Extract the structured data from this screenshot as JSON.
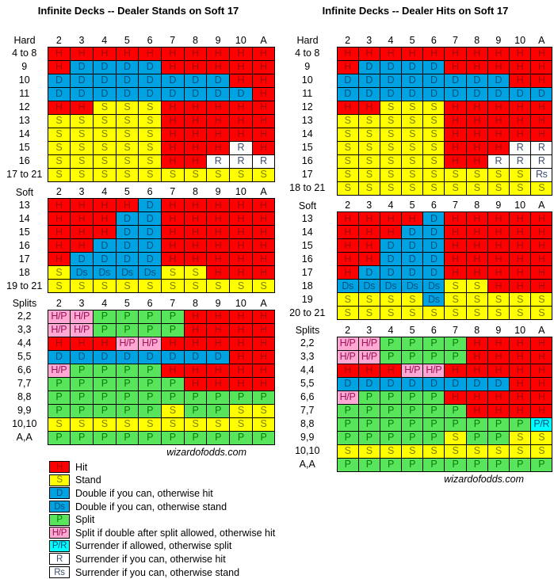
{
  "palette": {
    "H": {
      "bg": "#FF0000",
      "fg": "#9B0D0D"
    },
    "S": {
      "bg": "#FFFF00",
      "fg": "#7F7F00"
    },
    "D": {
      "bg": "#00A3E2",
      "fg": "#07507E"
    },
    "Ds": {
      "bg": "#00A3E2",
      "fg": "#07507E"
    },
    "P": {
      "bg": "#58E55C",
      "fg": "#0B7A0B"
    },
    "H/P": {
      "bg": "#FFA8D3",
      "fg": "#9C1458"
    },
    "P/R": {
      "bg": "#00FFFF",
      "fg": "#07507E"
    },
    "R": {
      "bg": "#FFFFFF",
      "fg": "#3C4E6E"
    },
    "Rs": {
      "bg": "#FFFFFF",
      "fg": "#3C4E6E"
    }
  },
  "chart_data": [
    {
      "type": "table",
      "title": "Infinite Decks -- Dealer Stands on Soft 17",
      "footer": "wizardofodds.com",
      "columns": [
        "2",
        "3",
        "4",
        "5",
        "6",
        "7",
        "8",
        "9",
        "10",
        "A"
      ],
      "sections": [
        {
          "label": "Hard",
          "rows": [
            {
              "label": "4 to 8",
              "cells": [
                "H",
                "H",
                "H",
                "H",
                "H",
                "H",
                "H",
                "H",
                "H",
                "H"
              ]
            },
            {
              "label": "9",
              "cells": [
                "H",
                "D",
                "D",
                "D",
                "D",
                "H",
                "H",
                "H",
                "H",
                "H"
              ]
            },
            {
              "label": "10",
              "cells": [
                "D",
                "D",
                "D",
                "D",
                "D",
                "D",
                "D",
                "D",
                "H",
                "H"
              ]
            },
            {
              "label": "11",
              "cells": [
                "D",
                "D",
                "D",
                "D",
                "D",
                "D",
                "D",
                "D",
                "D",
                "H"
              ]
            },
            {
              "label": "12",
              "cells": [
                "H",
                "H",
                "S",
                "S",
                "S",
                "H",
                "H",
                "H",
                "H",
                "H"
              ]
            },
            {
              "label": "13",
              "cells": [
                "S",
                "S",
                "S",
                "S",
                "S",
                "H",
                "H",
                "H",
                "H",
                "H"
              ]
            },
            {
              "label": "14",
              "cells": [
                "S",
                "S",
                "S",
                "S",
                "S",
                "H",
                "H",
                "H",
                "H",
                "H"
              ]
            },
            {
              "label": "15",
              "cells": [
                "S",
                "S",
                "S",
                "S",
                "S",
                "H",
                "H",
                "H",
                "R",
                "H"
              ]
            },
            {
              "label": "16",
              "cells": [
                "S",
                "S",
                "S",
                "S",
                "S",
                "H",
                "H",
                "R",
                "R",
                "R"
              ]
            },
            {
              "label": "17 to 21",
              "cells": [
                "S",
                "S",
                "S",
                "S",
                "S",
                "S",
                "S",
                "S",
                "S",
                "S"
              ]
            }
          ]
        },
        {
          "label": "Soft",
          "rows": [
            {
              "label": "13",
              "cells": [
                "H",
                "H",
                "H",
                "H",
                "D",
                "H",
                "H",
                "H",
                "H",
                "H"
              ]
            },
            {
              "label": "14",
              "cells": [
                "H",
                "H",
                "H",
                "D",
                "D",
                "H",
                "H",
                "H",
                "H",
                "H"
              ]
            },
            {
              "label": "15",
              "cells": [
                "H",
                "H",
                "H",
                "D",
                "D",
                "H",
                "H",
                "H",
                "H",
                "H"
              ]
            },
            {
              "label": "16",
              "cells": [
                "H",
                "H",
                "D",
                "D",
                "D",
                "H",
                "H",
                "H",
                "H",
                "H"
              ]
            },
            {
              "label": "17",
              "cells": [
                "H",
                "D",
                "D",
                "D",
                "D",
                "H",
                "H",
                "H",
                "H",
                "H"
              ]
            },
            {
              "label": "18",
              "cells": [
                "S",
                "Ds",
                "Ds",
                "Ds",
                "Ds",
                "S",
                "S",
                "H",
                "H",
                "H"
              ]
            },
            {
              "label": "19 to 21",
              "cells": [
                "S",
                "S",
                "S",
                "S",
                "S",
                "S",
                "S",
                "S",
                "S",
                "S"
              ]
            }
          ]
        },
        {
          "label": "Splits",
          "rows": [
            {
              "label": "2,2",
              "cells": [
                "H/P",
                "H/P",
                "P",
                "P",
                "P",
                "P",
                "H",
                "H",
                "H",
                "H"
              ]
            },
            {
              "label": "3,3",
              "cells": [
                "H/P",
                "H/P",
                "P",
                "P",
                "P",
                "P",
                "H",
                "H",
                "H",
                "H"
              ]
            },
            {
              "label": "4,4",
              "cells": [
                "H",
                "H",
                "H",
                "H/P",
                "H/P",
                "H",
                "H",
                "H",
                "H",
                "H"
              ]
            },
            {
              "label": "5,5",
              "cells": [
                "D",
                "D",
                "D",
                "D",
                "D",
                "D",
                "D",
                "D",
                "H",
                "H"
              ]
            },
            {
              "label": "6,6",
              "cells": [
                "H/P",
                "P",
                "P",
                "P",
                "P",
                "H",
                "H",
                "H",
                "H",
                "H"
              ]
            },
            {
              "label": "7,7",
              "cells": [
                "P",
                "P",
                "P",
                "P",
                "P",
                "P",
                "H",
                "H",
                "H",
                "H"
              ]
            },
            {
              "label": "8,8",
              "cells": [
                "P",
                "P",
                "P",
                "P",
                "P",
                "P",
                "P",
                "P",
                "P",
                "P"
              ]
            },
            {
              "label": "9,9",
              "cells": [
                "P",
                "P",
                "P",
                "P",
                "P",
                "S",
                "P",
                "P",
                "S",
                "S"
              ]
            },
            {
              "label": "10,10",
              "cells": [
                "S",
                "S",
                "S",
                "S",
                "S",
                "S",
                "S",
                "S",
                "S",
                "S"
              ]
            },
            {
              "label": "A,A",
              "cells": [
                "P",
                "P",
                "P",
                "P",
                "P",
                "P",
                "P",
                "P",
                "P",
                "P"
              ]
            }
          ]
        }
      ]
    },
    {
      "type": "table",
      "title": "Infinite Decks -- Dealer Hits on Soft 17",
      "footer": "wizardofodds.com",
      "columns": [
        "2",
        "3",
        "4",
        "5",
        "6",
        "7",
        "8",
        "9",
        "10",
        "A"
      ],
      "sections": [
        {
          "label": "Hard",
          "rows": [
            {
              "label": "4 to 8",
              "cells": [
                "H",
                "H",
                "H",
                "H",
                "H",
                "H",
                "H",
                "H",
                "H",
                "H"
              ]
            },
            {
              "label": "9",
              "cells": [
                "H",
                "D",
                "D",
                "D",
                "D",
                "H",
                "H",
                "H",
                "H",
                "H"
              ]
            },
            {
              "label": "10",
              "cells": [
                "D",
                "D",
                "D",
                "D",
                "D",
                "D",
                "D",
                "D",
                "H",
                "H"
              ]
            },
            {
              "label": "11",
              "cells": [
                "D",
                "D",
                "D",
                "D",
                "D",
                "D",
                "D",
                "D",
                "D",
                "D"
              ]
            },
            {
              "label": "12",
              "cells": [
                "H",
                "H",
                "S",
                "S",
                "S",
                "H",
                "H",
                "H",
                "H",
                "H"
              ]
            },
            {
              "label": "13",
              "cells": [
                "S",
                "S",
                "S",
                "S",
                "S",
                "H",
                "H",
                "H",
                "H",
                "H"
              ]
            },
            {
              "label": "14",
              "cells": [
                "S",
                "S",
                "S",
                "S",
                "S",
                "H",
                "H",
                "H",
                "H",
                "H"
              ]
            },
            {
              "label": "15",
              "cells": [
                "S",
                "S",
                "S",
                "S",
                "S",
                "H",
                "H",
                "H",
                "R",
                "R"
              ]
            },
            {
              "label": "16",
              "cells": [
                "S",
                "S",
                "S",
                "S",
                "S",
                "H",
                "H",
                "R",
                "R",
                "R"
              ]
            },
            {
              "label": "17",
              "cells": [
                "S",
                "S",
                "S",
                "S",
                "S",
                "S",
                "S",
                "S",
                "S",
                "Rs"
              ]
            },
            {
              "label": "18 to 21",
              "cells": [
                "S",
                "S",
                "S",
                "S",
                "S",
                "S",
                "S",
                "S",
                "S",
                "S"
              ]
            }
          ]
        },
        {
          "label": "Soft",
          "rows": [
            {
              "label": "13",
              "cells": [
                "H",
                "H",
                "H",
                "H",
                "D",
                "H",
                "H",
                "H",
                "H",
                "H"
              ]
            },
            {
              "label": "14",
              "cells": [
                "H",
                "H",
                "H",
                "D",
                "D",
                "H",
                "H",
                "H",
                "H",
                "H"
              ]
            },
            {
              "label": "15",
              "cells": [
                "H",
                "H",
                "D",
                "D",
                "D",
                "H",
                "H",
                "H",
                "H",
                "H"
              ]
            },
            {
              "label": "16",
              "cells": [
                "H",
                "H",
                "D",
                "D",
                "D",
                "H",
                "H",
                "H",
                "H",
                "H"
              ]
            },
            {
              "label": "17",
              "cells": [
                "H",
                "D",
                "D",
                "D",
                "D",
                "H",
                "H",
                "H",
                "H",
                "H"
              ]
            },
            {
              "label": "18",
              "cells": [
                "Ds",
                "Ds",
                "Ds",
                "Ds",
                "Ds",
                "S",
                "S",
                "H",
                "H",
                "H"
              ]
            },
            {
              "label": "19",
              "cells": [
                "S",
                "S",
                "S",
                "S",
                "Ds",
                "S",
                "S",
                "S",
                "S",
                "S"
              ]
            },
            {
              "label": "20 to 21",
              "cells": [
                "S",
                "S",
                "S",
                "S",
                "S",
                "S",
                "S",
                "S",
                "S",
                "S"
              ]
            }
          ]
        },
        {
          "label": "Splits",
          "rows": [
            {
              "label": "2,2",
              "cells": [
                "H/P",
                "H/P",
                "P",
                "P",
                "P",
                "P",
                "H",
                "H",
                "H",
                "H"
              ]
            },
            {
              "label": "3,3",
              "cells": [
                "H/P",
                "H/P",
                "P",
                "P",
                "P",
                "P",
                "H",
                "H",
                "H",
                "H"
              ]
            },
            {
              "label": "4,4",
              "cells": [
                "H",
                "H",
                "H",
                "H/P",
                "H/P",
                "H",
                "H",
                "H",
                "H",
                "H"
              ]
            },
            {
              "label": "5,5",
              "cells": [
                "D",
                "D",
                "D",
                "D",
                "D",
                "D",
                "D",
                "D",
                "H",
                "H"
              ]
            },
            {
              "label": "6,6",
              "cells": [
                "H/P",
                "P",
                "P",
                "P",
                "P",
                "H",
                "H",
                "H",
                "H",
                "H"
              ]
            },
            {
              "label": "7,7",
              "cells": [
                "P",
                "P",
                "P",
                "P",
                "P",
                "P",
                "H",
                "H",
                "H",
                "H"
              ]
            },
            {
              "label": "8,8",
              "cells": [
                "P",
                "P",
                "P",
                "P",
                "P",
                "P",
                "P",
                "P",
                "P",
                "P/R"
              ]
            },
            {
              "label": "9,9",
              "cells": [
                "P",
                "P",
                "P",
                "P",
                "P",
                "S",
                "P",
                "P",
                "S",
                "S"
              ]
            },
            {
              "label": "10,10",
              "cells": [
                "S",
                "S",
                "S",
                "S",
                "S",
                "S",
                "S",
                "S",
                "S",
                "S"
              ]
            },
            {
              "label": "A,A",
              "cells": [
                "P",
                "P",
                "P",
                "P",
                "P",
                "P",
                "P",
                "P",
                "P",
                "P"
              ]
            }
          ]
        }
      ]
    }
  ],
  "legend": {
    "items": [
      {
        "code": "H",
        "label": "Hit"
      },
      {
        "code": "S",
        "label": "Stand"
      },
      {
        "code": "D",
        "label": "Double if you can, otherwise hit"
      },
      {
        "code": "Ds",
        "label": "Double if you can, otherwise stand"
      },
      {
        "code": "P",
        "label": "Split"
      },
      {
        "code": "H/P",
        "label": "Split if double after split allowed, otherwise hit"
      },
      {
        "code": "P/R",
        "label": "Surrender if allowed, otherwise split"
      },
      {
        "code": "R",
        "label": "Surrender if you can, otherwise hit"
      },
      {
        "code": "Rs",
        "label": "Surrender if you can, otherwise stand"
      }
    ]
  }
}
